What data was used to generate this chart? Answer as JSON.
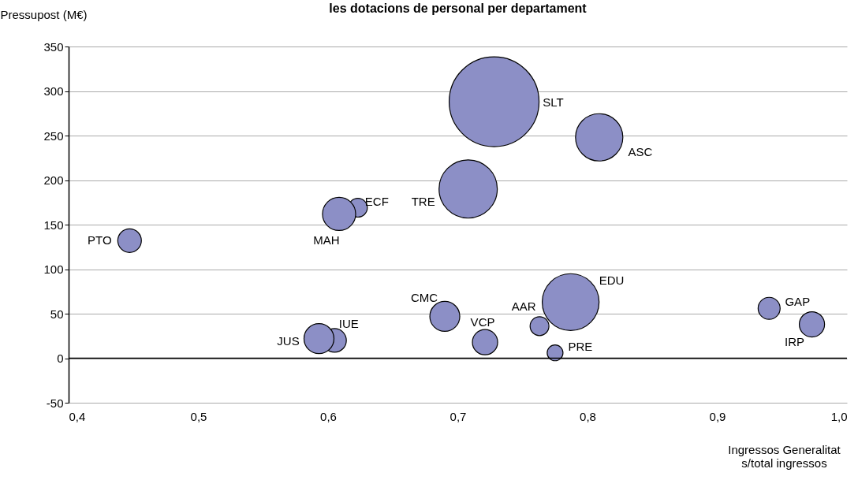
{
  "chart_data": {
    "type": "bubble",
    "title": "les dotacions de personal per departament",
    "xlabel": "Ingressos Generalitat s/total ingressos",
    "ylabel": "Pressupost (M€)",
    "x": [
      0.447,
      0.6085,
      0.623,
      0.708,
      0.728,
      0.809,
      0.69,
      0.593,
      0.605,
      0.721,
      0.763,
      0.787,
      0.775,
      0.94,
      0.973
    ],
    "values": [
      132,
      162,
      169,
      190,
      288,
      248,
      47,
      22,
      20,
      18,
      36,
      63,
      6,
      56,
      38
    ],
    "sizes": [
      0.069,
      0.136,
      0.044,
      0.42,
      1,
      0.277,
      0.111,
      0.111,
      0.069,
      0.079,
      0.044,
      0.4,
      0.031,
      0.06,
      0.079
    ],
    "color": "#8c8fc6",
    "marker": "circle",
    "annotations": [
      {
        "text": "PTO",
        "x": 0.447,
        "y": 132
      },
      {
        "text": "MAH",
        "x": 0.6085,
        "y": 162
      },
      {
        "text": "ECF",
        "x": 0.623,
        "y": 169
      },
      {
        "text": "TRE",
        "x": 0.708,
        "y": 190
      },
      "SLT",
      {
        "text": "ASC",
        "x": 0.809,
        "y": 248
      },
      {
        "text": "CMC",
        "x": 0.69,
        "y": 47
      },
      {
        "text": "JUS",
        "x": 0.593,
        "y": 22
      },
      {
        "text": "IUE",
        "x": 0.605,
        "y": 20
      },
      {
        "text": "VCP",
        "x": 0.721,
        "y": 18
      },
      {
        "text": "AAR",
        "x": 0.763,
        "y": 36
      },
      {
        "text": "EDU",
        "x": 0.787,
        "y": 63
      },
      {
        "text": "PRE",
        "x": 0.775,
        "y": 6
      },
      {
        "text": "GAP",
        "x": 0.94,
        "y": 56
      },
      {
        "text": "IRP",
        "x": 0.973,
        "y": 38
      }
    ],
    "xlim": [
      0.4,
      1.0
    ],
    "xticks": [
      {
        "value": 0.4,
        "label": "0,4"
      },
      {
        "value": 0.5,
        "label": "0,5"
      },
      {
        "value": 0.6,
        "label": "0,6"
      },
      {
        "value": 0.7,
        "label": "0,7"
      },
      {
        "value": 0.8,
        "label": "0,8"
      },
      {
        "value": 0.9,
        "label": "0,9"
      },
      {
        "value": 1.0,
        "label": "1,0"
      }
    ],
    "ylim": [
      -50,
      350
    ],
    "yticks": [
      -50,
      0,
      50,
      100,
      150,
      200,
      250,
      300,
      350
    ],
    "ref_lines": [
      {
        "axis": "y",
        "value": 0,
        "color": "#000000"
      }
    ],
    "grid": "y"
  }
}
